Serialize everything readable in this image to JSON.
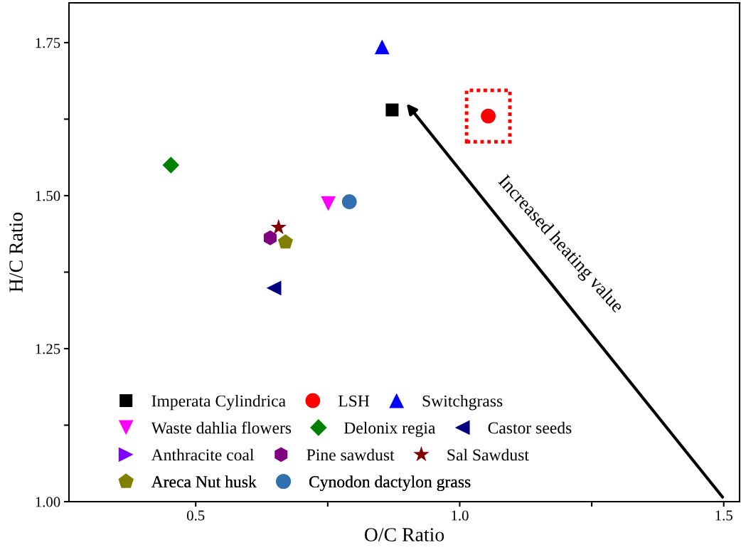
{
  "chart_data": {
    "type": "scatter",
    "xlabel": "O/C Ratio",
    "ylabel": "H/C Ratio",
    "xlim": [
      0.26,
      1.53
    ],
    "ylim": [
      1.0,
      1.815
    ],
    "xticks": [
      0.5,
      {
        "value": 0.75,
        "label": null
      },
      {
        "value": 1.0,
        "label": "1.0"
      },
      {
        "value": 1.25,
        "label": null
      },
      1.5
    ],
    "yticks": [
      {
        "value": 1.0,
        "label": "1.00"
      },
      {
        "value": 1.125,
        "label": null
      },
      1.25,
      {
        "value": 1.375,
        "label": null
      },
      {
        "value": 1.5,
        "label": "1.50"
      },
      {
        "value": 1.625,
        "label": null
      },
      1.75
    ],
    "grid": false,
    "legend": "bottom left",
    "series": [
      {
        "name": "Imperata Cylindrica",
        "color": "#000000",
        "marker": "square",
        "x": [
          0.872
        ],
        "values": [
          1.64
        ]
      },
      {
        "name": "LSH",
        "color": "#ff0000",
        "marker": "circle",
        "x": [
          1.054
        ],
        "values": [
          1.63
        ]
      },
      {
        "name": "Switchgrass",
        "color": "#0000ff",
        "marker": "triangle",
        "x": [
          0.853
        ],
        "values": [
          1.743
        ]
      },
      {
        "name": "Waste dahlia flowers",
        "color": "#ff00ff",
        "marker": "triangle_down",
        "x": [
          0.751
        ],
        "values": [
          1.487
        ]
      },
      {
        "name": "Delonix regia",
        "color": "#008000",
        "marker": "diamond",
        "x": [
          0.453
        ],
        "values": [
          1.55
        ]
      },
      {
        "name": "Castor seeds",
        "color": "#000080",
        "marker": "triangle_left",
        "x": [
          0.648
        ],
        "values": [
          1.349
        ]
      },
      {
        "name": "Anthracite coal",
        "color": "#8000ff",
        "marker": "triangle_right"
      },
      {
        "name": "Pine sawdust",
        "color": "#800080",
        "x": [
          0.641
        ],
        "values": [
          1.431
        ]
      },
      {
        "name": "Sal Sawdust",
        "color": "#800000",
        "marker": "star",
        "x": [
          0.657
        ],
        "values": [
          1.448
        ]
      },
      {
        "name": "Areca Nut husk",
        "color": "#808000",
        "x": [
          0.67
        ],
        "values": [
          1.424
        ]
      },
      {
        "name": "Cynodon dactylon grass",
        "color": "#3070b0",
        "marker": "circle",
        "x": [
          0.791
        ],
        "values": [
          1.49
        ]
      }
    ],
    "annotations": [
      "Increased heating value"
    ]
  }
}
